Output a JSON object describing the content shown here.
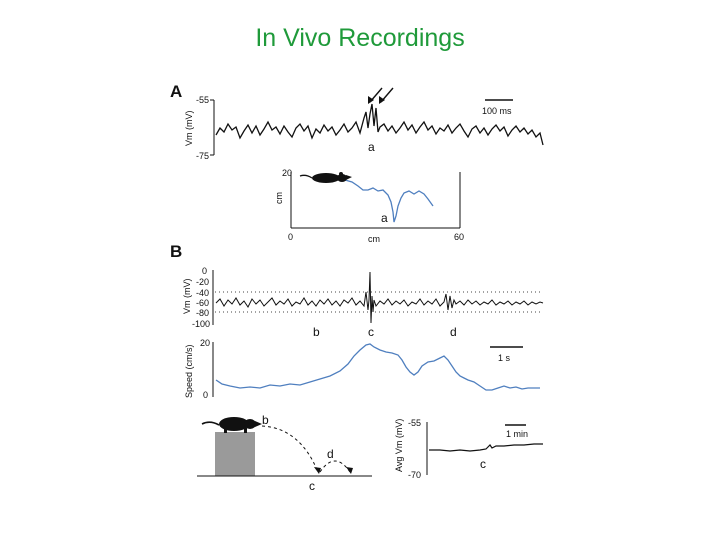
{
  "slide": {
    "title": "In Vivo Recordings"
  },
  "panelA": {
    "label": "A",
    "trace": {
      "ylabel": "Vm (mV)",
      "yticks": [
        "-55",
        "-75"
      ],
      "scalebar_label": "100 ms",
      "event_label": "a"
    },
    "position": {
      "ylabel": "cm",
      "xlabel": "cm",
      "yticks": [
        "20",
        "0"
      ],
      "xticks": [
        "0",
        "60"
      ],
      "event_label": "a"
    }
  },
  "panelB": {
    "label": "B",
    "trace": {
      "ylabel": "Vm (mV)",
      "yticks": [
        "0",
        "-20",
        "-40",
        "-60",
        "-80",
        "-100"
      ],
      "event_labels": [
        "b",
        "c",
        "d"
      ]
    },
    "speed": {
      "ylabel": "Speed (cm/s)",
      "yticks": [
        "20",
        "0"
      ],
      "scalebar_label": "1 s"
    },
    "schematic": {
      "event_labels": [
        "b",
        "d",
        "c"
      ]
    },
    "avg": {
      "ylabel": "Avg Vm (mV)",
      "yticks": [
        "-55",
        "-70"
      ],
      "scalebar_label": "1 min",
      "event_label": "c"
    }
  }
}
